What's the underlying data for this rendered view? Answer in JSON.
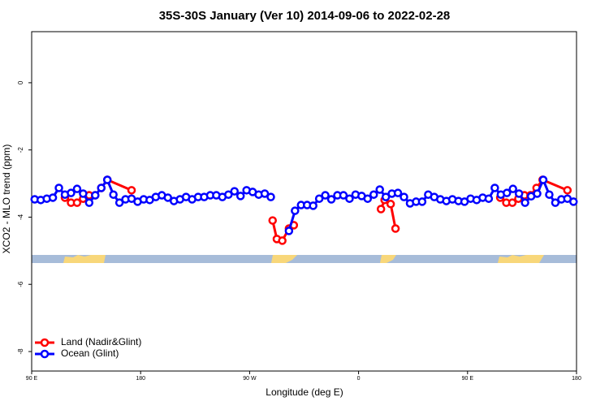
{
  "chart_data": {
    "type": "line",
    "title": "35S-30S January (Ver 10)   2014-09-06 to 2022-02-28",
    "x_label": "Longitude (deg E)",
    "y_label": "XCO2 - MLO trend (ppm)",
    "xlim": [
      90,
      540
    ],
    "xticks": [
      {
        "value": 90,
        "label": "90 E"
      },
      180,
      {
        "value": 270,
        "label": "90 W"
      },
      {
        "value": 360,
        "label": "0"
      },
      {
        "value": 450,
        "label": "90 E"
      },
      {
        "value": 540,
        "label": "180"
      }
    ],
    "ylim": [
      -8.58,
      1.52
    ],
    "yticks": [
      -8,
      -6,
      -4,
      -2,
      0
    ],
    "grid": false,
    "legend": "lower left",
    "series": [
      {
        "name": "Land (Nadir&Glint)",
        "color": "#ff0000",
        "x": [
          117.5,
          122.5,
          127.5,
          132.5,
          137.5,
          142.5,
          147.5,
          152.5,
          172.5,
          null,
          289,
          292.5,
          297,
          302.5,
          306.5,
          null,
          378.5,
          381.5,
          386.5,
          390.5,
          null,
          477,
          482,
          487,
          492,
          497,
          502,
          507,
          512,
          532.5
        ],
        "values": [
          -3.42,
          -3.57,
          -3.57,
          -3.45,
          -3.35,
          -3.35,
          -3.13,
          -2.89,
          -3.2,
          null,
          -4.1,
          -4.65,
          -4.7,
          -4.34,
          -4.24,
          null,
          -3.76,
          -3.49,
          -3.61,
          -4.34,
          null,
          -3.42,
          -3.57,
          -3.57,
          -3.45,
          -3.35,
          -3.35,
          -3.13,
          -2.89,
          -3.2
        ]
      },
      {
        "name": "Ocean (Glint)",
        "color": "#0000ff",
        "x": [
          92.5,
          97.5,
          102.5,
          107.5,
          112.5,
          117.5,
          122.5,
          127.5,
          132.5,
          137.5,
          142.5,
          147.5,
          152.5,
          157.5,
          162.5,
          167.5,
          172.5,
          177.5,
          182.5,
          187.5,
          192.5,
          197.5,
          202.5,
          207.5,
          212.5,
          217.5,
          222.5,
          227.5,
          232.5,
          237.5,
          242.5,
          247.5,
          252.5,
          257.5,
          262.5,
          267.5,
          272.5,
          277.5,
          282.5,
          287.5,
          null,
          302.5,
          307.5,
          312.5,
          317.5,
          322.5,
          327.5,
          332.5,
          337.5,
          342.5,
          347.5,
          352.5,
          357.5,
          362.5,
          367.5,
          372.5,
          377.5,
          382.5,
          387.5,
          392.5,
          397.5,
          402.5,
          407.5,
          412.5,
          417.5,
          422.5,
          427.5,
          432.5,
          437.5,
          442.5,
          447.5,
          452.5,
          457.5,
          462.5,
          467.5,
          472.5,
          477.5,
          482.5,
          487.5,
          492.5,
          497.5,
          502.5,
          507.5,
          512.5,
          517.5,
          522.5,
          527.5,
          532.5,
          537.5
        ],
        "values": [
          -3.47,
          -3.49,
          -3.45,
          -3.42,
          -3.13,
          -3.33,
          -3.28,
          -3.16,
          -3.3,
          -3.57,
          -3.35,
          -3.13,
          -2.89,
          -3.33,
          -3.57,
          -3.47,
          -3.45,
          -3.54,
          -3.47,
          -3.49,
          -3.4,
          -3.35,
          -3.42,
          -3.52,
          -3.47,
          -3.4,
          -3.47,
          -3.4,
          -3.4,
          -3.35,
          -3.35,
          -3.4,
          -3.33,
          -3.23,
          -3.37,
          -3.2,
          -3.25,
          -3.33,
          -3.3,
          -3.4,
          null,
          -4.41,
          -3.81,
          -3.64,
          -3.64,
          -3.66,
          -3.45,
          -3.35,
          -3.47,
          -3.35,
          -3.35,
          -3.45,
          -3.33,
          -3.37,
          -3.45,
          -3.33,
          -3.18,
          -3.4,
          -3.3,
          -3.28,
          -3.4,
          -3.59,
          -3.54,
          -3.54,
          -3.33,
          -3.4,
          -3.47,
          -3.52,
          -3.47,
          -3.52,
          -3.54,
          -3.45,
          -3.49,
          -3.42,
          -3.45,
          -3.13,
          -3.33,
          -3.28,
          -3.16,
          -3.3,
          -3.57,
          -3.38,
          -3.3,
          -2.89,
          -3.33,
          -3.57,
          -3.47,
          -3.45,
          -3.54
        ]
      }
    ]
  }
}
